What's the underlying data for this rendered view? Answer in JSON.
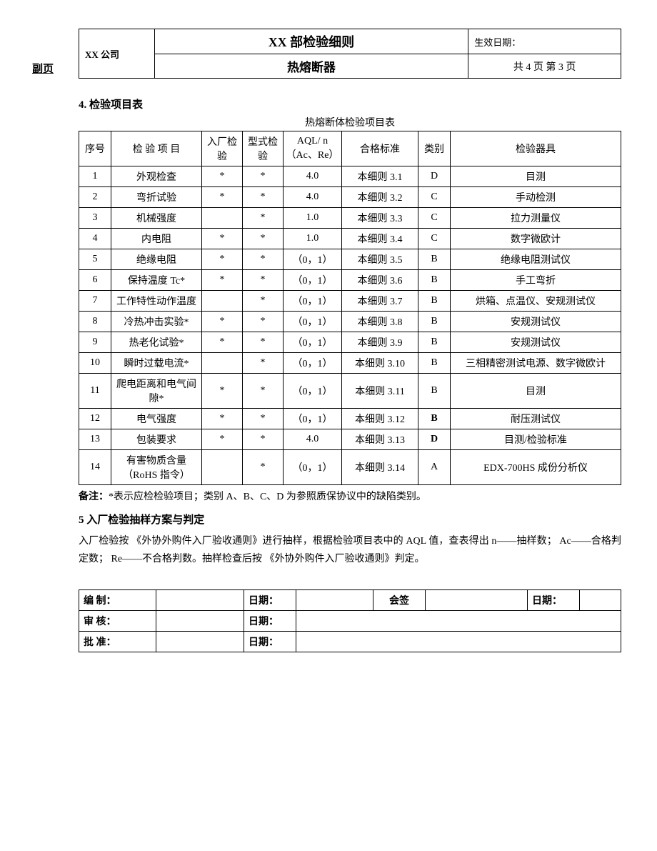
{
  "side_label": "副页",
  "header": {
    "title": "XX 部检验细则",
    "effective_label": "生效日期：",
    "company": "XX 公司",
    "subtitle": "热熔断器",
    "pages": "共 4 页   第 3 页"
  },
  "section4": {
    "title": "4. 检验项目表",
    "caption": "热熔断体检验项目表",
    "headers": {
      "seq": "序号",
      "item": "检 验 项 目",
      "incoming": "入厂检验",
      "type": "型式检验",
      "aql": "AQL/ n（Ac、Re）",
      "standard": "合格标准",
      "category": "类别",
      "tool": "检验器具"
    },
    "rows": [
      {
        "seq": "1",
        "item": "外观检查",
        "in": "*",
        "type": "*",
        "aql": "4.0",
        "std": "本细则 3.1",
        "cat": "D",
        "tool": "目测"
      },
      {
        "seq": "2",
        "item": "弯折试验",
        "in": "*",
        "type": "*",
        "aql": "4.0",
        "std": "本细则 3.2",
        "cat": "C",
        "tool": "手动检测"
      },
      {
        "seq": "3",
        "item": "机械强度",
        "in": "",
        "type": "*",
        "aql": "1.0",
        "std": "本细则 3.3",
        "cat": "C",
        "tool": "拉力测量仪"
      },
      {
        "seq": "4",
        "item": "内电阻",
        "in": "*",
        "type": "*",
        "aql": "1.0",
        "std": "本细则 3.4",
        "cat": "C",
        "tool": "数字微欧计"
      },
      {
        "seq": "5",
        "item": "绝缘电阻",
        "in": "*",
        "type": "*",
        "aql": "（0，1）",
        "std": "本细则 3.5",
        "cat": "B",
        "tool": "绝缘电阻测试仪"
      },
      {
        "seq": "6",
        "item": "保持温度 Tc*",
        "in": "*",
        "type": "*",
        "aql": "（0，1）",
        "std": "本细则 3.6",
        "cat": "B",
        "tool": "手工弯折"
      },
      {
        "seq": "7",
        "item": "工作特性动作温度",
        "in": "",
        "type": "*",
        "aql": "（0，1）",
        "std": "本细则 3.7",
        "cat": "B",
        "tool": "烘箱、点温仪、安规测试仪"
      },
      {
        "seq": "8",
        "item": "冷热冲击实验*",
        "in": "*",
        "type": "*",
        "aql": "（0，1）",
        "std": "本细则 3.8",
        "cat": "B",
        "tool": "安规测试仪"
      },
      {
        "seq": "9",
        "item": "热老化试验*",
        "in": "*",
        "type": "*",
        "aql": "（0，1）",
        "std": "本细则 3.9",
        "cat": "B",
        "tool": "安规测试仪"
      },
      {
        "seq": "10",
        "item": "瞬时过载电流*",
        "in": "",
        "type": "*",
        "aql": "（0，1）",
        "std": "本细则 3.10",
        "cat": "B",
        "tool": "三相精密测试电源、数字微欧计"
      },
      {
        "seq": "11",
        "item": "爬电距离和电气间隙*",
        "in": "*",
        "type": "*",
        "aql": "（0，1）",
        "std": "本细则 3.11",
        "cat": "B",
        "tool": "目测"
      },
      {
        "seq": "12",
        "item": "电气强度",
        "in": "*",
        "type": "*",
        "aql": "（0，1）",
        "std": "本细则 3.12",
        "cat": "B",
        "cat_bold": true,
        "tool": "耐压测试仪"
      },
      {
        "seq": "13",
        "item": "包装要求",
        "in": "*",
        "type": "*",
        "aql": "4.0",
        "std": "本细则 3.13",
        "cat": "D",
        "cat_bold": true,
        "tool": "目测/检验标准"
      },
      {
        "seq": "14",
        "item": "有害物质含量（RoHS 指令）",
        "in": "",
        "type": "*",
        "aql": "（0，1）",
        "std": "本细则 3.14",
        "cat": "A",
        "tool": "EDX-700HS 成份分析仪"
      }
    ],
    "note_label": "备注：",
    "note_text": "*表示应检检验项目；类别 A、B、C、D 为参照质保协议中的缺陷类别。"
  },
  "section5": {
    "title": "5   入厂检验抽样方案与判定",
    "body": "入厂检验按   《外协外购件入厂验收通则》进行抽样，根据检验项目表中的 AQL 值，查表得出 n——抽样数；   Ac——合格判定数；  Re——不合格判数。抽样检查后按   《外协外购件入厂验收通则》判定。"
  },
  "sign": {
    "compile": "编    制：",
    "review": "审    核：",
    "approve": "批    准：",
    "date": "日期：",
    "cosign": "会签"
  }
}
